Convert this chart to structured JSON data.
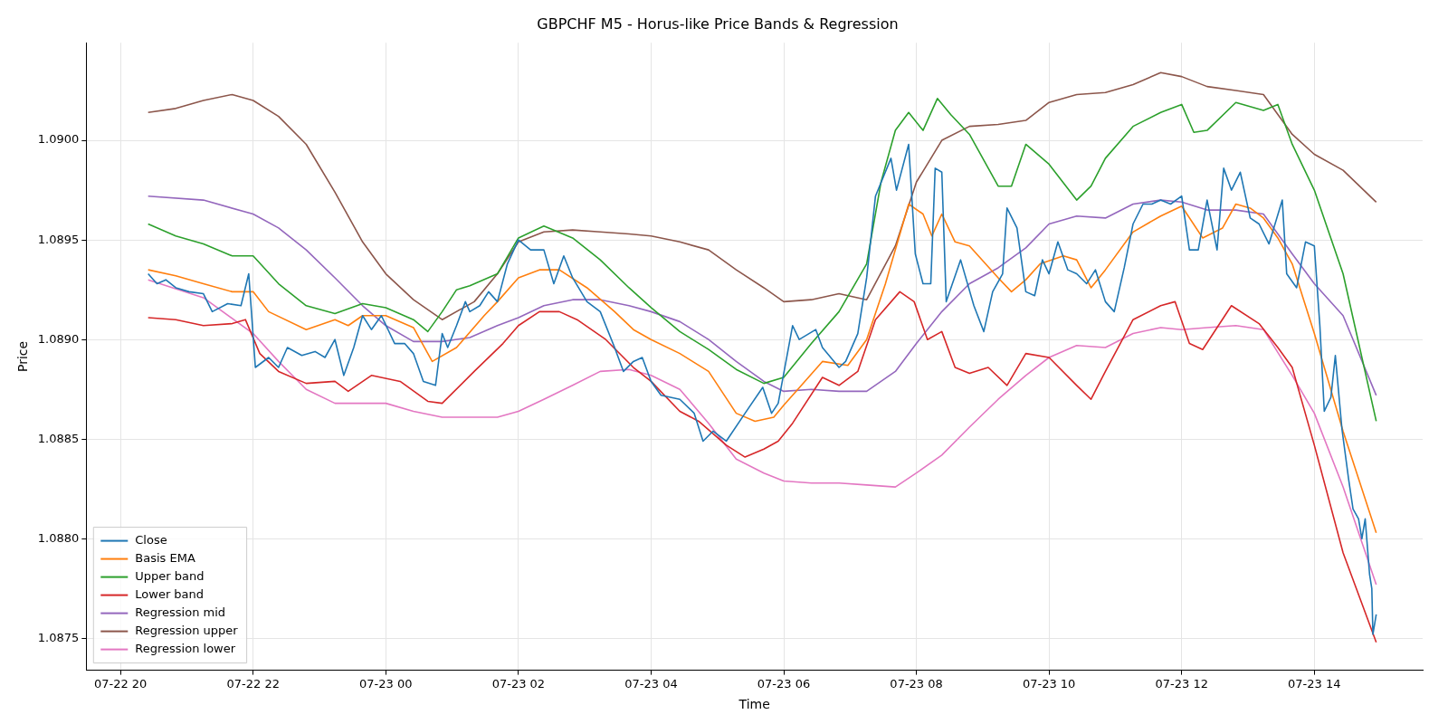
{
  "chart_data": {
    "type": "line",
    "title": "GBPCHF M5 - Horus-like Price Bands & Regression",
    "xlabel": "Time",
    "ylabel": "Price",
    "xlim": [
      "--07-22T19:29",
      "--07-23T15:38"
    ],
    "ylim": [
      1.08734,
      1.09049
    ],
    "xticks": [
      {
        "value": "--07-22T20:00",
        "label": "07-22 20"
      },
      {
        "value": "--07-22T22:00",
        "label": "07-22 22"
      },
      {
        "value": "--07-23T00:00",
        "label": "07-23 00"
      },
      {
        "value": "--07-23T02:00",
        "label": "07-23 02"
      },
      {
        "value": "--07-23T04:00",
        "label": "07-23 04"
      },
      {
        "value": "--07-23T06:00",
        "label": "07-23 06"
      },
      {
        "value": "--07-23T08:00",
        "label": "07-23 08"
      },
      {
        "value": "--07-23T10:00",
        "label": "07-23 10"
      },
      {
        "value": "--07-23T12:00",
        "label": "07-23 12"
      },
      {
        "value": "--07-23T14:00",
        "label": "07-23 14"
      }
    ],
    "yticks": [
      {
        "value": 1.0875,
        "label": "1.0875"
      },
      {
        "value": 1.088,
        "label": "1.0880"
      },
      {
        "value": 1.0885,
        "label": "1.0885"
      },
      {
        "value": 1.089,
        "label": "1.0890"
      },
      {
        "value": 1.0895,
        "label": "1.0895"
      },
      {
        "value": 1.09,
        "label": "1.0900"
      }
    ],
    "grid": true,
    "legend": "bottom left",
    "series": [
      {
        "name": "Close",
        "color": "#1f77b4",
        "x": [
          "--07-22T20:25",
          "--07-22T20:33",
          "--07-22T20:41",
          "--07-22T20:50",
          "--07-22T21:02",
          "--07-22T21:15",
          "--07-22T21:23",
          "--07-22T21:37",
          "--07-22T21:49",
          "--07-22T21:56",
          "--07-22T22:02",
          "--07-22T22:14",
          "--07-22T22:23",
          "--07-22T22:31",
          "--07-22T22:44",
          "--07-22T22:56",
          "--07-22T23:05",
          "--07-22T23:14",
          "--07-22T23:22",
          "--07-22T23:31",
          "--07-22T23:39",
          "--07-22T23:47",
          "--07-22T23:56",
          "--07-23T00:08",
          "--07-23T00:17",
          "--07-23T00:25",
          "--07-23T00:34",
          "--07-23T00:45",
          "--07-23T00:51",
          "--07-23T00:56",
          "--07-23T01:04",
          "--07-23T01:12",
          "--07-23T01:16",
          "--07-23T01:25",
          "--07-23T01:33",
          "--07-23T01:41",
          "--07-23T01:50",
          "--07-23T02:00",
          "--07-23T02:11",
          "--07-23T02:23",
          "--07-23T02:32",
          "--07-23T02:41",
          "--07-23T02:49",
          "--07-23T03:02",
          "--07-23T03:14",
          "--07-23T03:27",
          "--07-23T03:35",
          "--07-23T03:44",
          "--07-23T03:52",
          "--07-23T04:00",
          "--07-23T04:09",
          "--07-23T04:26",
          "--07-23T04:39",
          "--07-23T04:47",
          "--07-23T04:56",
          "--07-23T05:08",
          "--07-23T05:25",
          "--07-23T05:41",
          "--07-23T05:49",
          "--07-23T05:55",
          "--07-23T06:08",
          "--07-23T06:14",
          "--07-23T06:29",
          "--07-23T06:35",
          "--07-23T06:50",
          "--07-23T06:56",
          "--07-23T07:07",
          "--07-23T07:15",
          "--07-23T07:23",
          "--07-23T07:37",
          "--07-23T07:42",
          "--07-23T07:53",
          "--07-23T07:59",
          "--07-23T08:06",
          "--07-23T08:13",
          "--07-23T08:17",
          "--07-23T08:23",
          "--07-23T08:27",
          "--07-23T08:40",
          "--07-23T08:52",
          "--07-23T09:01",
          "--07-23T09:09",
          "--07-23T09:18",
          "--07-23T09:22",
          "--07-23T09:31",
          "--07-23T09:39",
          "--07-23T09:47",
          "--07-23T09:54",
          "--07-23T10:00",
          "--07-23T10:08",
          "--07-23T10:17",
          "--07-23T10:25",
          "--07-23T10:34",
          "--07-23T10:42",
          "--07-23T10:51",
          "--07-23T10:59",
          "--07-23T11:08",
          "--07-23T11:16",
          "--07-23T11:25",
          "--07-23T11:33",
          "--07-23T11:41",
          "--07-23T11:50",
          "--07-23T12:00",
          "--07-23T12:07",
          "--07-23T12:15",
          "--07-23T12:23",
          "--07-23T12:32",
          "--07-23T12:38",
          "--07-23T12:45",
          "--07-23T12:53",
          "--07-23T13:02",
          "--07-23T13:10",
          "--07-23T13:19",
          "--07-23T13:31",
          "--07-23T13:35",
          "--07-23T13:44",
          "--07-23T13:52",
          "--07-23T14:00",
          "--07-23T14:05",
          "--07-23T14:09",
          "--07-23T14:15",
          "--07-23T14:19",
          "--07-23T14:25",
          "--07-23T14:31",
          "--07-23T14:35",
          "--07-23T14:40",
          "--07-23T14:43",
          "--07-23T14:46",
          "--07-23T14:50",
          "--07-23T14:52",
          "--07-23T14:53",
          "--07-23T14:56"
        ],
        "values": [
          1.08933,
          1.08928,
          1.0893,
          1.08926,
          1.08924,
          1.08923,
          1.08914,
          1.08918,
          1.08917,
          1.08933,
          1.08886,
          1.08891,
          1.08886,
          1.08896,
          1.08892,
          1.08894,
          1.08891,
          1.089,
          1.08882,
          1.08896,
          1.08912,
          1.08905,
          1.08912,
          1.08898,
          1.08898,
          1.08893,
          1.08879,
          1.08877,
          1.08903,
          1.08896,
          1.08907,
          1.08919,
          1.08914,
          1.08917,
          1.08924,
          1.08919,
          1.08938,
          1.0895,
          1.08945,
          1.08945,
          1.08928,
          1.08942,
          1.08931,
          1.08919,
          1.08914,
          1.08896,
          1.08884,
          1.08889,
          1.08891,
          1.08879,
          1.08872,
          1.0887,
          1.08863,
          1.08849,
          1.08854,
          1.08849,
          1.08863,
          1.08876,
          1.08863,
          1.08868,
          1.08907,
          1.089,
          1.08905,
          1.08896,
          1.08886,
          1.08889,
          1.08903,
          1.08931,
          1.08972,
          1.08991,
          1.08975,
          1.08998,
          1.08943,
          1.08928,
          1.08928,
          1.08986,
          1.08984,
          1.08919,
          1.0894,
          1.08917,
          1.08904,
          1.08924,
          1.08933,
          1.08966,
          1.08956,
          1.08924,
          1.08922,
          1.0894,
          1.08933,
          1.08949,
          1.08935,
          1.08933,
          1.08928,
          1.08935,
          1.08919,
          1.08914,
          1.08936,
          1.08958,
          1.08968,
          1.08968,
          1.0897,
          1.08968,
          1.08972,
          1.08945,
          1.08945,
          1.0897,
          1.08945,
          1.08986,
          1.08975,
          1.08984,
          1.08961,
          1.08958,
          1.08948,
          1.0897,
          1.08933,
          1.08926,
          1.08949,
          1.08947,
          1.08907,
          1.08864,
          1.08871,
          1.08892,
          1.08855,
          1.0883,
          1.08815,
          1.0881,
          1.088,
          1.0881,
          1.08782,
          1.08775,
          1.08752,
          1.08762
        ]
      },
      {
        "name": "Basis EMA",
        "color": "#ff7f0e",
        "x": [
          "--07-22T20:25",
          "--07-22T20:50",
          "--07-22T21:15",
          "--07-22T21:41",
          "--07-22T22:00",
          "--07-22T22:14",
          "--07-22T22:48",
          "--07-22T23:14",
          "--07-22T23:26",
          "--07-22T23:39",
          "--07-23T00:00",
          "--07-23T00:25",
          "--07-23T00:42",
          "--07-23T01:04",
          "--07-23T01:29",
          "--07-23T01:41",
          "--07-23T02:00",
          "--07-23T02:19",
          "--07-23T02:37",
          "--07-23T03:02",
          "--07-23T03:27",
          "--07-23T03:44",
          "--07-23T04:00",
          "--07-23T04:26",
          "--07-23T04:52",
          "--07-23T05:17",
          "--07-23T05:34",
          "--07-23T05:51",
          "--07-23T06:00",
          "--07-23T06:16",
          "--07-23T06:35",
          "--07-23T06:58",
          "--07-23T07:15",
          "--07-23T07:32",
          "--07-23T07:53",
          "--07-23T08:06",
          "--07-23T08:14",
          "--07-23T08:23",
          "--07-23T08:35",
          "--07-23T08:48",
          "--07-23T09:14",
          "--07-23T09:26",
          "--07-23T09:39",
          "--07-23T09:52",
          "--07-23T10:13",
          "--07-23T10:25",
          "--07-23T10:38",
          "--07-23T10:51",
          "--07-23T11:16",
          "--07-23T11:41",
          "--07-23T12:00",
          "--07-23T12:19",
          "--07-23T12:37",
          "--07-23T12:49",
          "--07-23T13:02",
          "--07-23T13:14",
          "--07-23T13:27",
          "--07-23T13:40",
          "--07-23T14:00",
          "--07-23T14:26",
          "--07-23T14:56"
        ],
        "values": [
          1.08935,
          1.08932,
          1.08928,
          1.08924,
          1.08924,
          1.08914,
          1.08905,
          1.0891,
          1.08907,
          1.08912,
          1.08912,
          1.08906,
          1.08889,
          1.08896,
          1.08912,
          1.08919,
          1.08931,
          1.08935,
          1.08935,
          1.08926,
          1.08914,
          1.08905,
          1.089,
          1.08893,
          1.08884,
          1.08863,
          1.08859,
          1.08861,
          1.08867,
          1.08877,
          1.08889,
          1.08887,
          1.089,
          1.08928,
          1.08968,
          1.08963,
          1.08952,
          1.08963,
          1.08949,
          1.08947,
          1.08931,
          1.08924,
          1.0893,
          1.08938,
          1.08942,
          1.0894,
          1.08926,
          1.08935,
          1.08954,
          1.08962,
          1.08967,
          1.08951,
          1.08956,
          1.08968,
          1.08966,
          1.08961,
          1.08951,
          1.08938,
          1.08903,
          1.08854,
          1.08803
        ]
      },
      {
        "name": "Upper band",
        "color": "#2ca02c",
        "x": [
          "--07-22T20:25",
          "--07-22T20:50",
          "--07-22T21:15",
          "--07-22T21:41",
          "--07-22T22:00",
          "--07-22T22:23",
          "--07-22T22:48",
          "--07-22T23:14",
          "--07-22T23:39",
          "--07-23T00:00",
          "--07-23T00:25",
          "--07-23T00:38",
          "--07-23T00:51",
          "--07-23T01:04",
          "--07-23T01:16",
          "--07-23T01:41",
          "--07-23T02:00",
          "--07-23T02:23",
          "--07-23T02:49",
          "--07-23T03:14",
          "--07-23T03:40",
          "--07-23T04:00",
          "--07-23T04:26",
          "--07-23T04:52",
          "--07-23T05:17",
          "--07-23T05:42",
          "--07-23T06:00",
          "--07-23T06:25",
          "--07-23T06:50",
          "--07-23T07:15",
          "--07-23T07:28",
          "--07-23T07:41",
          "--07-23T07:53",
          "--07-23T08:06",
          "--07-23T08:19",
          "--07-23T08:31",
          "--07-23T08:48",
          "--07-23T09:14",
          "--07-23T09:26",
          "--07-23T09:39",
          "--07-23T10:00",
          "--07-23T10:25",
          "--07-23T10:38",
          "--07-23T10:51",
          "--07-23T11:16",
          "--07-23T11:41",
          "--07-23T12:00",
          "--07-23T12:11",
          "--07-23T12:23",
          "--07-23T12:49",
          "--07-23T13:14",
          "--07-23T13:27",
          "--07-23T13:40",
          "--07-23T14:00",
          "--07-23T14:26",
          "--07-23T14:56"
        ],
        "values": [
          1.08958,
          1.08952,
          1.08948,
          1.08942,
          1.08942,
          1.08928,
          1.08917,
          1.08913,
          1.08918,
          1.08916,
          1.0891,
          1.08904,
          1.08914,
          1.08925,
          1.08927,
          1.08933,
          1.08951,
          1.08957,
          1.08951,
          1.0894,
          1.08926,
          1.08916,
          1.08904,
          1.08895,
          1.08885,
          1.08878,
          1.08881,
          1.08898,
          1.08914,
          1.08938,
          1.08979,
          1.09005,
          1.09014,
          1.09005,
          1.09021,
          1.09013,
          1.09003,
          1.08977,
          1.08977,
          1.08998,
          1.08988,
          1.0897,
          1.08977,
          1.08991,
          1.09007,
          1.09014,
          1.09018,
          1.09004,
          1.09005,
          1.09019,
          1.09015,
          1.09018,
          1.08998,
          1.08975,
          1.08933,
          1.08859
        ]
      },
      {
        "name": "Lower band",
        "color": "#d62728",
        "x": [
          "--07-22T20:25",
          "--07-22T20:50",
          "--07-22T21:15",
          "--07-22T21:41",
          "--07-22T21:53",
          "--07-22T22:06",
          "--07-22T22:23",
          "--07-22T22:48",
          "--07-22T23:14",
          "--07-22T23:26",
          "--07-22T23:47",
          "--07-23T00:13",
          "--07-23T00:38",
          "--07-23T00:51",
          "--07-23T01:20",
          "--07-23T01:46",
          "--07-23T02:00",
          "--07-23T02:19",
          "--07-23T02:37",
          "--07-23T02:53",
          "--07-23T03:19",
          "--07-23T03:44",
          "--07-23T04:00",
          "--07-23T04:26",
          "--07-23T04:43",
          "--07-23T05:08",
          "--07-23T05:25",
          "--07-23T05:42",
          "--07-23T05:55",
          "--07-23T06:08",
          "--07-23T06:35",
          "--07-23T06:50",
          "--07-23T07:07",
          "--07-23T07:23",
          "--07-23T07:45",
          "--07-23T07:58",
          "--07-23T08:10",
          "--07-23T08:23",
          "--07-23T08:35",
          "--07-23T08:48",
          "--07-23T09:05",
          "--07-23T09:22",
          "--07-23T09:39",
          "--07-23T10:00",
          "--07-23T10:25",
          "--07-23T10:38",
          "--07-23T10:51",
          "--07-23T11:16",
          "--07-23T11:41",
          "--07-23T11:54",
          "--07-23T12:07",
          "--07-23T12:19",
          "--07-23T12:45",
          "--07-23T13:10",
          "--07-23T13:27",
          "--07-23T13:40",
          "--07-23T14:00",
          "--07-23T14:26",
          "--07-23T14:56"
        ],
        "values": [
          1.08911,
          1.0891,
          1.08907,
          1.08908,
          1.0891,
          1.08893,
          1.08884,
          1.08878,
          1.08879,
          1.08874,
          1.08882,
          1.08879,
          1.08869,
          1.08868,
          1.08884,
          1.08898,
          1.08907,
          1.08914,
          1.08914,
          1.0891,
          1.089,
          1.08886,
          1.08879,
          1.08864,
          1.08859,
          1.08847,
          1.08841,
          1.08845,
          1.08849,
          1.08858,
          1.08881,
          1.08877,
          1.08884,
          1.0891,
          1.08924,
          1.08919,
          1.089,
          1.08904,
          1.08886,
          1.08883,
          1.08886,
          1.08877,
          1.08893,
          1.08891,
          1.08877,
          1.0887,
          1.08884,
          1.0891,
          1.08917,
          1.08919,
          1.08898,
          1.08895,
          1.08917,
          1.08908,
          1.08896,
          1.08886,
          1.08847,
          1.08793,
          1.08748
        ]
      },
      {
        "name": "Regression mid",
        "color": "#9467bd",
        "x": [
          "--07-22T20:25",
          "--07-22T21:15",
          "--07-22T22:00",
          "--07-22T22:23",
          "--07-22T22:48",
          "--07-22T23:14",
          "--07-22T23:39",
          "--07-23T00:00",
          "--07-23T00:25",
          "--07-23T00:51",
          "--07-23T01:16",
          "--07-23T01:41",
          "--07-23T02:00",
          "--07-23T02:23",
          "--07-23T02:49",
          "--07-23T03:14",
          "--07-23T03:40",
          "--07-23T04:00",
          "--07-23T04:26",
          "--07-23T04:52",
          "--07-23T05:17",
          "--07-23T05:42",
          "--07-23T06:00",
          "--07-23T06:25",
          "--07-23T06:50",
          "--07-23T07:15",
          "--07-23T07:41",
          "--07-23T08:00",
          "--07-23T08:23",
          "--07-23T08:48",
          "--07-23T09:14",
          "--07-23T09:39",
          "--07-23T10:00",
          "--07-23T10:25",
          "--07-23T10:51",
          "--07-23T11:16",
          "--07-23T11:41",
          "--07-23T12:00",
          "--07-23T12:23",
          "--07-23T12:49",
          "--07-23T13:14",
          "--07-23T13:40",
          "--07-23T14:00",
          "--07-23T14:26",
          "--07-23T14:56"
        ],
        "values": [
          1.08972,
          1.0897,
          1.08963,
          1.08956,
          1.08945,
          1.08931,
          1.08917,
          1.08907,
          1.08899,
          1.08899,
          1.08901,
          1.08907,
          1.08911,
          1.08917,
          1.0892,
          1.0892,
          1.08917,
          1.08914,
          1.08909,
          1.089,
          1.08889,
          1.08879,
          1.08874,
          1.08875,
          1.08874,
          1.08874,
          1.08884,
          1.08898,
          1.08914,
          1.08928,
          1.08936,
          1.08946,
          1.08958,
          1.08962,
          1.08961,
          1.08968,
          1.0897,
          1.08969,
          1.08965,
          1.08965,
          1.08963,
          1.08943,
          1.08928,
          1.08912,
          1.08872
        ]
      },
      {
        "name": "Regression upper",
        "color": "#8c564b",
        "x": [
          "--07-22T20:25",
          "--07-22T20:50",
          "--07-22T21:15",
          "--07-22T21:41",
          "--07-22T22:00",
          "--07-22T22:23",
          "--07-22T22:48",
          "--07-22T23:14",
          "--07-22T23:39",
          "--07-23T00:00",
          "--07-23T00:25",
          "--07-23T00:51",
          "--07-23T01:20",
          "--07-23T01:41",
          "--07-23T02:00",
          "--07-23T02:23",
          "--07-23T02:49",
          "--07-23T03:14",
          "--07-23T03:40",
          "--07-23T04:00",
          "--07-23T04:26",
          "--07-23T04:52",
          "--07-23T05:17",
          "--07-23T05:42",
          "--07-23T06:00",
          "--07-23T06:25",
          "--07-23T06:50",
          "--07-23T07:15",
          "--07-23T07:41",
          "--07-23T08:00",
          "--07-23T08:23",
          "--07-23T08:48",
          "--07-23T09:14",
          "--07-23T09:39",
          "--07-23T10:00",
          "--07-23T10:25",
          "--07-23T10:51",
          "--07-23T11:16",
          "--07-23T11:41",
          "--07-23T12:00",
          "--07-23T12:23",
          "--07-23T12:49",
          "--07-23T13:14",
          "--07-23T13:40",
          "--07-23T14:00",
          "--07-23T14:26",
          "--07-23T14:56"
        ],
        "values": [
          1.09014,
          1.09016,
          1.0902,
          1.09023,
          1.0902,
          1.09012,
          1.08998,
          1.08974,
          1.08949,
          1.08933,
          1.0892,
          1.0891,
          1.08919,
          1.08933,
          1.08949,
          1.08954,
          1.08955,
          1.08954,
          1.08953,
          1.08952,
          1.08949,
          1.08945,
          1.08935,
          1.08926,
          1.08919,
          1.0892,
          1.08923,
          1.0892,
          1.08947,
          1.08979,
          1.09,
          1.09007,
          1.09008,
          1.0901,
          1.09019,
          1.09023,
          1.09024,
          1.09028,
          1.09034,
          1.09032,
          1.09027,
          1.09025,
          1.09023,
          1.09003,
          1.08993,
          1.08985,
          1.08969
        ]
      },
      {
        "name": "Regression lower",
        "color": "#e377c2",
        "x": [
          "--07-22T20:25",
          "--07-22T21:15",
          "--07-22T22:00",
          "--07-22T22:23",
          "--07-22T22:48",
          "--07-22T23:14",
          "--07-22T23:39",
          "--07-23T00:00",
          "--07-23T00:25",
          "--07-23T00:51",
          "--07-23T01:16",
          "--07-23T01:41",
          "--07-23T02:00",
          "--07-23T02:23",
          "--07-23T02:49",
          "--07-23T03:14",
          "--07-23T03:40",
          "--07-23T04:00",
          "--07-23T04:26",
          "--07-23T04:52",
          "--07-23T05:17",
          "--07-23T05:42",
          "--07-23T06:00",
          "--07-23T06:25",
          "--07-23T06:50",
          "--07-23T07:15",
          "--07-23T07:41",
          "--07-23T08:00",
          "--07-23T08:23",
          "--07-23T08:48",
          "--07-23T09:14",
          "--07-23T09:39",
          "--07-23T10:00",
          "--07-23T10:25",
          "--07-23T10:51",
          "--07-23T11:16",
          "--07-23T11:41",
          "--07-23T12:00",
          "--07-23T12:23",
          "--07-23T12:49",
          "--07-23T13:14",
          "--07-23T13:40",
          "--07-23T14:00",
          "--07-23T14:26",
          "--07-23T14:56"
        ],
        "values": [
          1.0893,
          1.08921,
          1.08903,
          1.08889,
          1.08875,
          1.08868,
          1.08868,
          1.08868,
          1.08864,
          1.08861,
          1.08861,
          1.08861,
          1.08864,
          1.0887,
          1.08877,
          1.08884,
          1.08885,
          1.08882,
          1.08875,
          1.08858,
          1.0884,
          1.08833,
          1.08829,
          1.08828,
          1.08828,
          1.08827,
          1.08826,
          1.08833,
          1.08842,
          1.08856,
          1.0887,
          1.08882,
          1.08891,
          1.08897,
          1.08896,
          1.08903,
          1.08906,
          1.08905,
          1.08906,
          1.08907,
          1.08905,
          1.08882,
          1.08863,
          1.08826,
          1.08777
        ]
      }
    ]
  }
}
